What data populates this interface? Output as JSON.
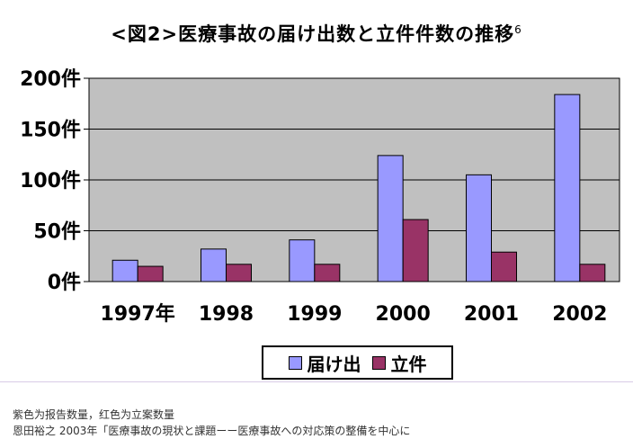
{
  "title": "<図2>医療事故の届け出数と立件件数の推移",
  "title_superscript": "6",
  "chart_data": {
    "type": "bar",
    "title": "<図2>医療事故の届け出数と立件件数の推移",
    "categories": [
      "1997年",
      "1998",
      "1999",
      "2000",
      "2001",
      "2002"
    ],
    "series": [
      {
        "name": "届け出",
        "color": "#9999ff",
        "values": [
          21,
          32,
          41,
          124,
          105,
          184
        ]
      },
      {
        "name": "立件",
        "color": "#993366",
        "values": [
          15,
          17,
          17,
          61,
          29,
          17
        ]
      }
    ],
    "y_ticks": [
      0,
      50,
      100,
      150,
      200
    ],
    "y_tick_labels": [
      "0件",
      "50件",
      "100件",
      "150件",
      "200件"
    ],
    "ylim": [
      0,
      200
    ],
    "grid": true,
    "plot_background": "#c0c0c0",
    "legend_position": "bottom-center"
  },
  "legend": {
    "items": [
      "届け出",
      "立件"
    ]
  },
  "caption": {
    "line1": "紫色为报告数量，红色为立案数量",
    "line2": "恩田裕之 2003年「医療事故の現状と課題ーー医療事故への対応策の整備を中心に"
  }
}
